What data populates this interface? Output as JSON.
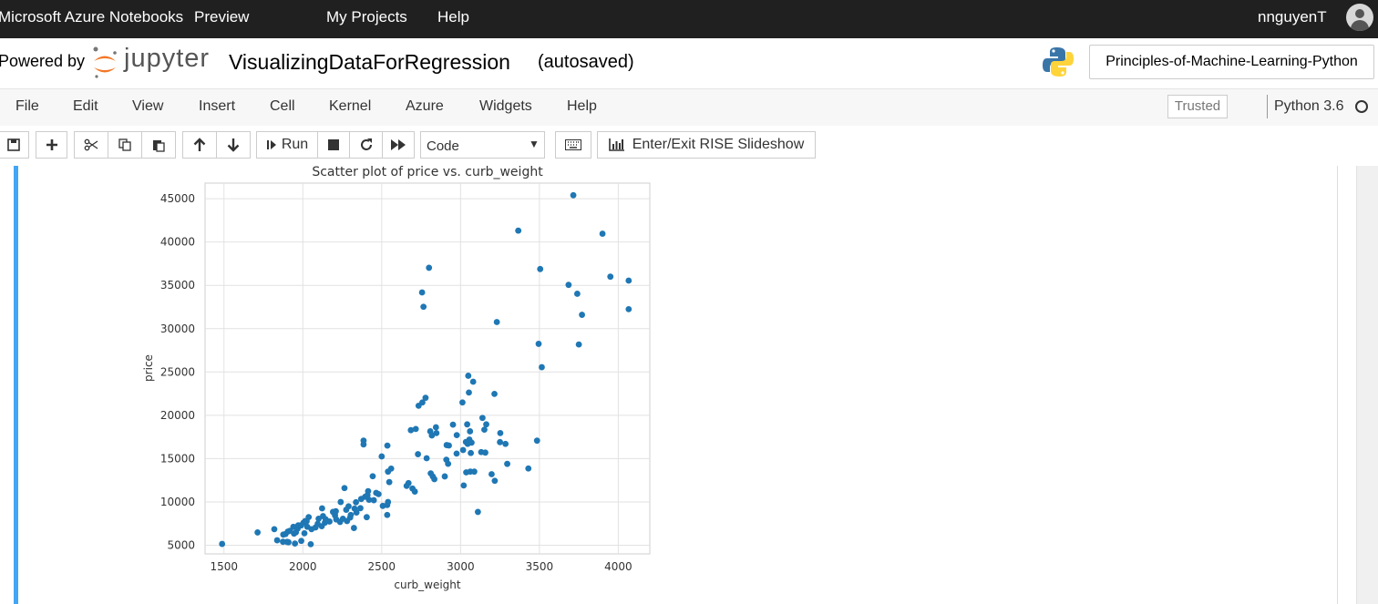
{
  "top_nav": {
    "brand": "Microsoft Azure Notebooks",
    "preview": "Preview",
    "my_projects": "My Projects",
    "help": "Help",
    "username": "nnguyenT"
  },
  "header": {
    "powered_by": "Powered by",
    "logo_text": "jupyter",
    "notebook_title": "VisualizingDataForRegression",
    "autosave_status": "(autosaved)",
    "project_button": "Principles-of-Machine-Learning-Python"
  },
  "menu": {
    "items": [
      "File",
      "Edit",
      "View",
      "Insert",
      "Cell",
      "Kernel",
      "Azure",
      "Widgets",
      "Help"
    ],
    "trusted": "Trusted",
    "kernel_name": "Python 3.6"
  },
  "toolbar": {
    "run_label": "Run",
    "cell_type": "Code",
    "rise_label": "Enter/Exit RISE Slideshow"
  },
  "colors": {
    "topbar": "#202020",
    "cell_selected": "#42a5f5",
    "marker": "#1f77b4"
  },
  "chart_data": {
    "type": "scatter",
    "title": "Scatter plot of price vs. curb_weight",
    "xlabel": "curb_weight",
    "ylabel": "price",
    "xlim": [
      1380,
      4200
    ],
    "ylim": [
      4000,
      46800
    ],
    "xticks": [
      1500,
      2000,
      2500,
      3000,
      3500,
      4000
    ],
    "yticks": [
      5000,
      10000,
      15000,
      20000,
      25000,
      30000,
      35000,
      40000,
      45000
    ],
    "grid": true,
    "series": [
      {
        "points": [
          [
            1488,
            5151
          ],
          [
            1713,
            6479
          ],
          [
            1819,
            6855
          ],
          [
            1837,
            5572
          ],
          [
            1876,
            6229
          ],
          [
            1874,
            5399
          ],
          [
            1890,
            6295
          ],
          [
            1900,
            5389
          ],
          [
            1905,
            6575
          ],
          [
            1909,
            5348
          ],
          [
            1918,
            6669
          ],
          [
            1940,
            7129
          ],
          [
            1944,
            6338
          ],
          [
            1950,
            5195
          ],
          [
            1956,
            6488
          ],
          [
            1967,
            6918
          ],
          [
            1971,
            7299
          ],
          [
            1989,
            7295
          ],
          [
            1990,
            5499
          ],
          [
            2004,
            7603
          ],
          [
            2010,
            6377
          ],
          [
            2015,
            7799
          ],
          [
            2024,
            7775
          ],
          [
            2028,
            7126
          ],
          [
            2037,
            8249
          ],
          [
            2050,
            5118
          ],
          [
            2055,
            6849
          ],
          [
            2080,
            7053
          ],
          [
            2094,
            7463
          ],
          [
            2100,
            8058
          ],
          [
            2120,
            7198
          ],
          [
            2122,
            9258
          ],
          [
            2128,
            8358
          ],
          [
            2140,
            7609
          ],
          [
            2145,
            7999
          ],
          [
            2169,
            7738
          ],
          [
            2191,
            8845
          ],
          [
            2204,
            8449
          ],
          [
            2209,
            8921
          ],
          [
            2212,
            7975
          ],
          [
            2236,
            7689
          ],
          [
            2240,
            9989
          ],
          [
            2254,
            8058
          ],
          [
            2264,
            11595
          ],
          [
            2275,
            9095
          ],
          [
            2280,
            7788
          ],
          [
            2290,
            9495
          ],
          [
            2300,
            8195
          ],
          [
            2304,
            8495
          ],
          [
            2324,
            6989
          ],
          [
            2328,
            9233
          ],
          [
            2337,
            9960
          ],
          [
            2340,
            8778
          ],
          [
            2365,
            9279
          ],
          [
            2370,
            10345
          ],
          [
            2385,
            16630
          ],
          [
            2385,
            17075
          ],
          [
            2395,
            10595
          ],
          [
            2405,
            8238
          ],
          [
            2410,
            10795
          ],
          [
            2414,
            11245
          ],
          [
            2420,
            10245
          ],
          [
            2443,
            12964
          ],
          [
            2450,
            10198
          ],
          [
            2465,
            11048
          ],
          [
            2480,
            10898
          ],
          [
            2500,
            15250
          ],
          [
            2507,
            9538
          ],
          [
            2535,
            8499
          ],
          [
            2535,
            9639
          ],
          [
            2540,
            9989
          ],
          [
            2536,
            16500
          ],
          [
            2540,
            13499
          ],
          [
            2548,
            12290
          ],
          [
            2560,
            13845
          ],
          [
            2658,
            11850
          ],
          [
            2670,
            12170
          ],
          [
            2685,
            18280
          ],
          [
            2695,
            11549
          ],
          [
            2710,
            11199
          ],
          [
            2716,
            18420
          ],
          [
            2730,
            15510
          ],
          [
            2734,
            21105
          ],
          [
            2756,
            34184
          ],
          [
            2765,
            32528
          ],
          [
            2758,
            21485
          ],
          [
            2778,
            22018
          ],
          [
            2785,
            15040
          ],
          [
            2800,
            37028
          ],
          [
            2808,
            18150
          ],
          [
            2811,
            13295
          ],
          [
            2818,
            17669
          ],
          [
            2824,
            12940
          ],
          [
            2834,
            12629
          ],
          [
            2844,
            18620
          ],
          [
            2847,
            17950
          ],
          [
            2900,
            12945
          ],
          [
            2910,
            14869
          ],
          [
            2912,
            16558
          ],
          [
            2921,
            14399
          ],
          [
            2926,
            16515
          ],
          [
            2952,
            18920
          ],
          [
            2975,
            15580
          ],
          [
            2976,
            17710
          ],
          [
            3012,
            21485
          ],
          [
            3016,
            15985
          ],
          [
            3020,
            11900
          ],
          [
            3034,
            16925
          ],
          [
            3036,
            13415
          ],
          [
            3042,
            18950
          ],
          [
            3045,
            16695
          ],
          [
            3049,
            24565
          ],
          [
            3053,
            22625
          ],
          [
            3056,
            17199
          ],
          [
            3060,
            18150
          ],
          [
            3062,
            13499
          ],
          [
            3065,
            15645
          ],
          [
            3070,
            16845
          ],
          [
            3080,
            23875
          ],
          [
            3087,
            13499
          ],
          [
            3110,
            8845
          ],
          [
            3131,
            15750
          ],
          [
            3139,
            19699
          ],
          [
            3151,
            18344
          ],
          [
            3157,
            15690
          ],
          [
            3163,
            18950
          ],
          [
            3197,
            13200
          ],
          [
            3215,
            22470
          ],
          [
            3217,
            12440
          ],
          [
            3230,
            30760
          ],
          [
            3250,
            16900
          ],
          [
            3252,
            17950
          ],
          [
            3285,
            16695
          ],
          [
            3296,
            14389
          ],
          [
            3366,
            41315
          ],
          [
            3430,
            13860
          ],
          [
            3485,
            17075
          ],
          [
            3495,
            28248
          ],
          [
            3505,
            36880
          ],
          [
            3515,
            25552
          ],
          [
            3685,
            35056
          ],
          [
            3715,
            45400
          ],
          [
            3740,
            34028
          ],
          [
            3750,
            28176
          ],
          [
            3770,
            31600
          ],
          [
            3900,
            40960
          ],
          [
            3950,
            36000
          ],
          [
            4066,
            35550
          ],
          [
            4066,
            32250
          ]
        ]
      }
    ]
  }
}
